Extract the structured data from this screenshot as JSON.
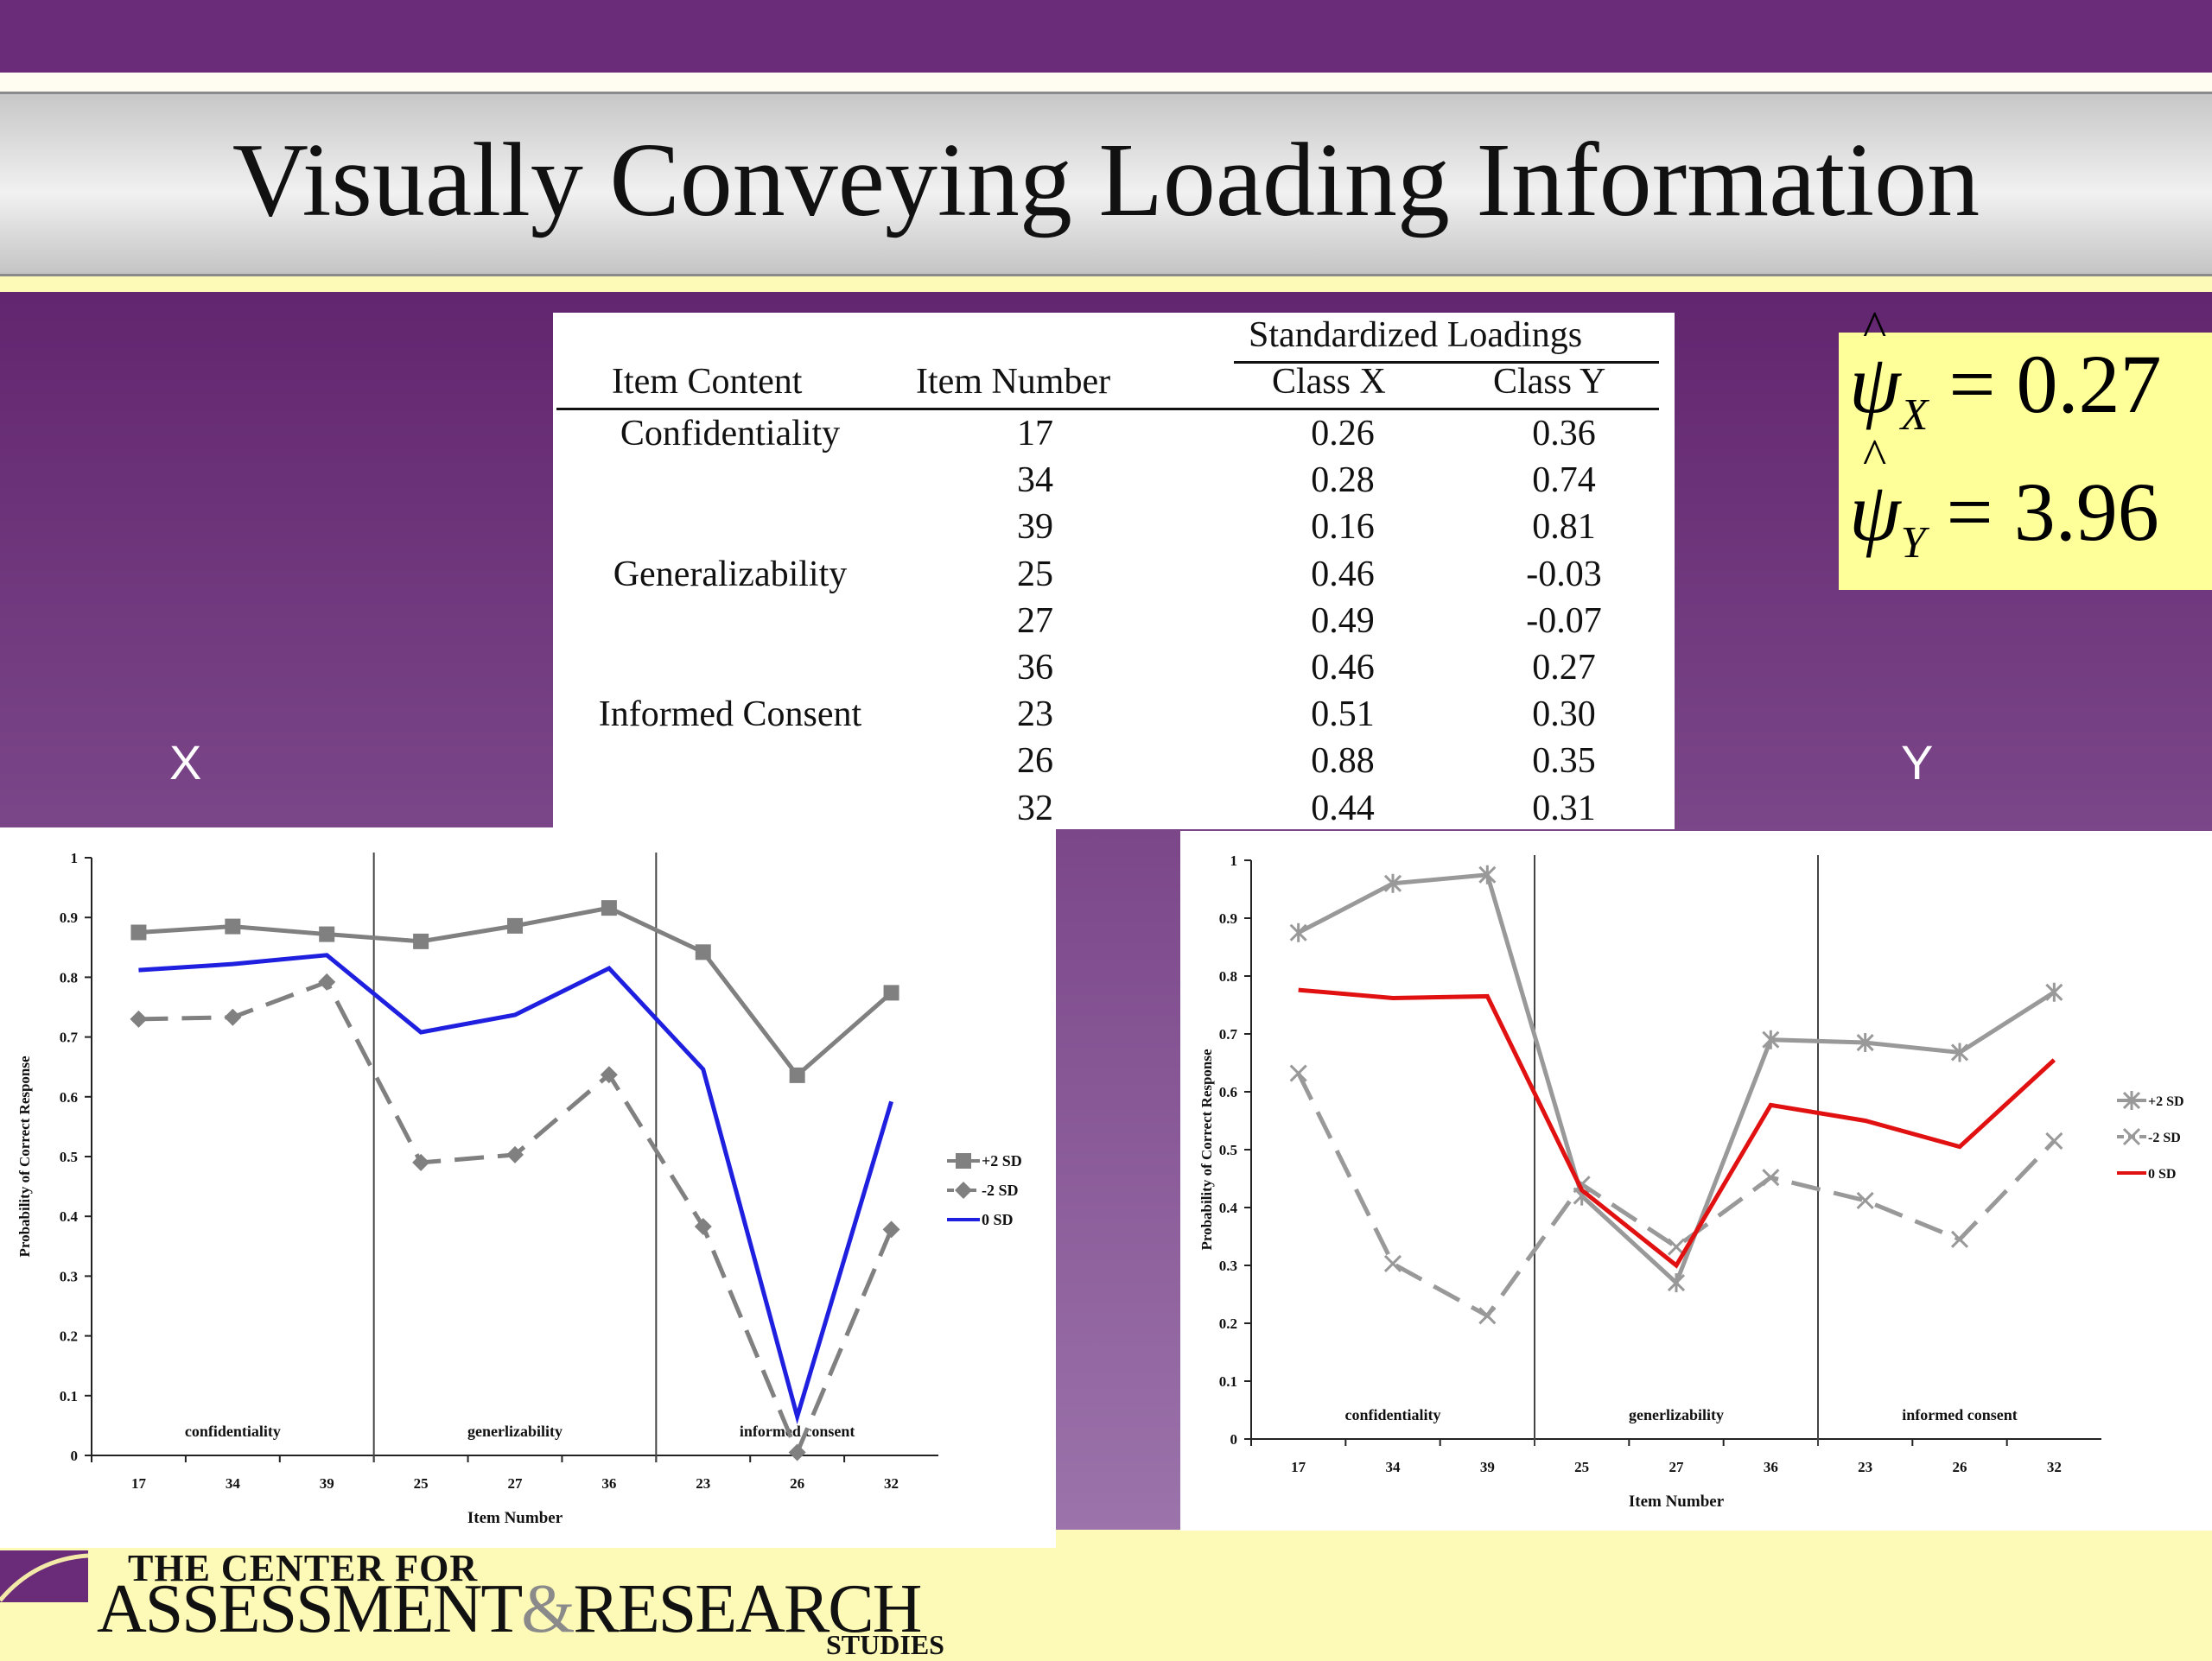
{
  "slide": {
    "title": "Visually Conveying Loading Information",
    "class_x_label": "X",
    "class_y_label": "Y"
  },
  "table": {
    "group_header": "Standardized Loadings",
    "col_item_content": "Item Content",
    "col_item_number": "Item Number",
    "col_class_x": "Class X",
    "col_class_y": "Class Y",
    "rows": [
      {
        "content": "Confidentiality",
        "number": "17",
        "x": "0.26",
        "y": "0.36"
      },
      {
        "content": "",
        "number": "34",
        "x": "0.28",
        "y": "0.74"
      },
      {
        "content": "",
        "number": "39",
        "x": "0.16",
        "y": "0.81"
      },
      {
        "content": "Generalizability",
        "number": "25",
        "x": "0.46",
        "y": "-0.03"
      },
      {
        "content": "",
        "number": "27",
        "x": "0.49",
        "y": "-0.07"
      },
      {
        "content": "",
        "number": "36",
        "x": "0.46",
        "y": "0.27"
      },
      {
        "content": "Informed Consent",
        "number": "23",
        "x": "0.51",
        "y": "0.30"
      },
      {
        "content": "",
        "number": "26",
        "x": "0.88",
        "y": "0.35"
      },
      {
        "content": "",
        "number": "32",
        "x": "0.44",
        "y": "0.31"
      }
    ]
  },
  "psi": {
    "x_value": "= 0.27",
    "y_value": "= 3.96",
    "symbol": "ψ",
    "x_sub": "X",
    "y_sub": "Y"
  },
  "chart_data": [
    {
      "type": "line",
      "panel": "X",
      "categories": [
        "17",
        "34",
        "39",
        "25",
        "27",
        "36",
        "23",
        "26",
        "32"
      ],
      "xlabel": "Item Number",
      "ylabel": "Probability of Correct Response",
      "ylim": [
        0,
        1
      ],
      "yticks": [
        "0",
        "0.1",
        "0.2",
        "0.3",
        "0.4",
        "0.5",
        "0.6",
        "0.7",
        "0.8",
        "0.9",
        "1"
      ],
      "sections": [
        "confidentiality",
        "generlizability",
        "informed consent"
      ],
      "legend_position": "right",
      "series": [
        {
          "name": "+2 SD",
          "color": "#808080",
          "dash": false,
          "marker": "square",
          "values": [
            0.875,
            0.885,
            0.872,
            0.86,
            0.886,
            0.916,
            0.842,
            0.636,
            0.774
          ]
        },
        {
          "name": "-2 SD",
          "color": "#808080",
          "dash": true,
          "marker": "diamond",
          "values": [
            0.73,
            0.733,
            0.792,
            0.49,
            0.503,
            0.637,
            0.383,
            0.005,
            0.378
          ]
        },
        {
          "name": "0 SD",
          "color": "#1f1fe0",
          "dash": false,
          "marker": "none",
          "values": [
            0.812,
            0.822,
            0.837,
            0.708,
            0.737,
            0.815,
            0.646,
            0.065,
            0.592
          ]
        }
      ]
    },
    {
      "type": "line",
      "panel": "Y",
      "categories": [
        "17",
        "34",
        "39",
        "25",
        "27",
        "36",
        "23",
        "26",
        "32"
      ],
      "xlabel": "Item Number",
      "ylabel": "Probability of Correct Response",
      "ylim": [
        0,
        1
      ],
      "yticks": [
        "0",
        "0.1",
        "0.2",
        "0.3",
        "0.4",
        "0.5",
        "0.6",
        "0.7",
        "0.8",
        "0.9",
        "1"
      ],
      "sections": [
        "confidentiality",
        "generlizability",
        "informed consent"
      ],
      "legend_position": "right",
      "series": [
        {
          "name": "+2 SD",
          "color": "#999999",
          "dash": false,
          "marker": "asterisk",
          "values": [
            0.875,
            0.96,
            0.975,
            0.42,
            0.27,
            0.69,
            0.685,
            0.668,
            0.772
          ]
        },
        {
          "name": "-2 SD",
          "color": "#999999",
          "dash": true,
          "marker": "x",
          "values": [
            0.632,
            0.303,
            0.213,
            0.44,
            0.332,
            0.452,
            0.412,
            0.345,
            0.515
          ]
        },
        {
          "name": "0 SD",
          "color": "#e11111",
          "dash": false,
          "marker": "none",
          "values": [
            0.776,
            0.762,
            0.765,
            0.43,
            0.3,
            0.577,
            0.55,
            0.505,
            0.655
          ]
        }
      ]
    }
  ],
  "logo": {
    "line1": "THE CENTER FOR",
    "line2a": "ASSESSMENT",
    "line2amp": "&",
    "line2b": "RESEARCH",
    "line3": "STUDIES"
  }
}
